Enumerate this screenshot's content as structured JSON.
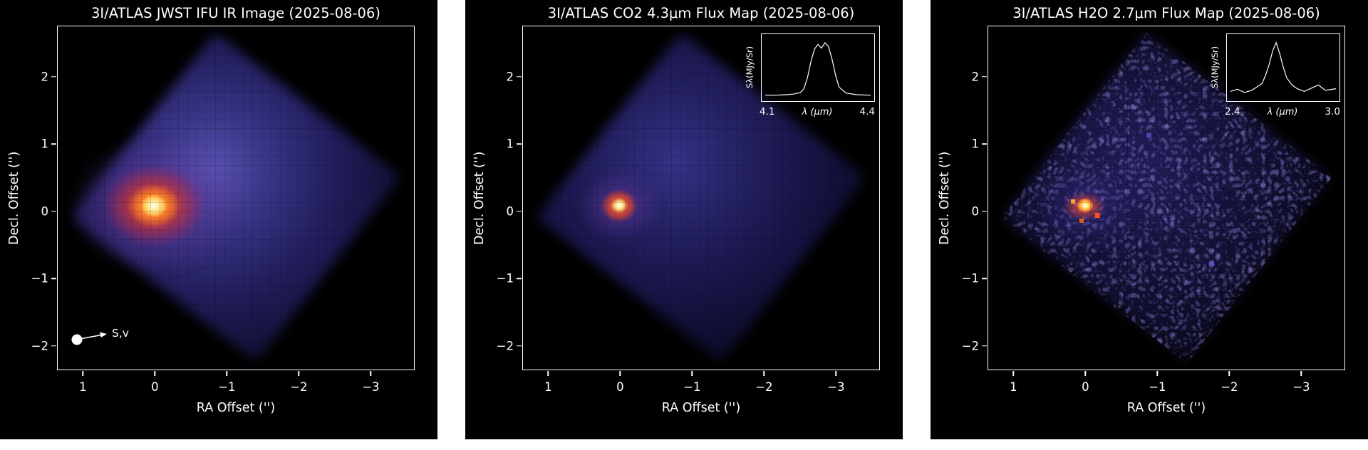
{
  "figure": {
    "background": "#ffffff",
    "panel_background": "#000000",
    "text_color": "#ffffff",
    "hot_core_color": "#ffee9a",
    "coma_color": "#4038a0"
  },
  "panels": [
    {
      "title": "3I/ATLAS JWST IFU IR Image (2025-08-06)",
      "xlabel": "RA Offset ('')",
      "ylabel": "Decl. Offset ('')",
      "annotation": "S,v"
    },
    {
      "title": "3I/ATLAS CO2 4.3μm Flux Map (2025-08-06)",
      "xlabel": "RA Offset ('')",
      "ylabel": "Decl. Offset ('')",
      "inset": {
        "ylabel": "Sλ(MJy/Sr)",
        "xlabel": "λ (μm)",
        "xticks": [
          "4.1",
          "4.4"
        ]
      }
    },
    {
      "title": "3I/ATLAS H2O 2.7μm Flux Map (2025-08-06)",
      "xlabel": "RA Offset ('')",
      "ylabel": "Decl. Offset ('')",
      "inset": {
        "ylabel": "Sλ(MJy/Sr)",
        "xlabel": "λ (μm)",
        "xticks": [
          "2.4",
          "3.0"
        ]
      }
    }
  ],
  "chart_data": [
    {
      "type": "heatmap",
      "title": "3I/ATLAS JWST IFU IR Image (2025-08-06)",
      "xlabel": "RA Offset ('')",
      "ylabel": "Decl. Offset ('')",
      "xlim": [
        1.35,
        -3.6
      ],
      "ylim": [
        -2.35,
        2.75
      ],
      "xticks": [
        1,
        0,
        -1,
        -2,
        -3
      ],
      "yticks": [
        -2,
        -1,
        0,
        1,
        2
      ],
      "peak": {
        "x": 0.0,
        "y": 0.0
      },
      "colormap": "black - dark blue - purple - red - orange - yellow - white",
      "annotation": {
        "label": "S,v",
        "x": 1.05,
        "y": -1.9
      },
      "description": "Diffuse diamond-shaped cometary coma (rotated IFU footprint) with a bright central condensation at the origin, fading toward negative RA offsets."
    },
    {
      "type": "heatmap",
      "title": "3I/ATLAS CO2 4.3μm Flux Map (2025-08-06)",
      "xlabel": "RA Offset ('')",
      "ylabel": "Decl. Offset ('')",
      "xlim": [
        1.35,
        -3.6
      ],
      "ylim": [
        -2.35,
        2.75
      ],
      "xticks": [
        1,
        0,
        -1,
        -2,
        -3
      ],
      "yticks": [
        -2,
        -1,
        0,
        1,
        2
      ],
      "peak": {
        "x": 0.0,
        "y": 0.0
      },
      "colormap": "black - dark blue - purple - red - orange - yellow - white",
      "description": "CO2 emission flux map: compact bright core at origin embedded in faint uniform diamond-shaped coma.",
      "inset": {
        "type": "line",
        "ylabel": "Sλ(MJy/Sr)",
        "xlabel": "λ (μm)",
        "xticks": [
          4.1,
          4.4
        ],
        "xlim": [
          4.1,
          4.4
        ],
        "x": [
          4.1,
          4.13,
          4.16,
          4.18,
          4.2,
          4.21,
          4.22,
          4.23,
          4.24,
          4.25,
          4.26,
          4.27,
          4.28,
          4.29,
          4.3,
          4.31,
          4.33,
          4.36,
          4.4
        ],
        "y": [
          0.03,
          0.03,
          0.04,
          0.05,
          0.08,
          0.15,
          0.35,
          0.65,
          0.88,
          0.97,
          0.9,
          1.0,
          0.93,
          0.7,
          0.4,
          0.18,
          0.07,
          0.04,
          0.03
        ]
      }
    },
    {
      "type": "heatmap",
      "title": "3I/ATLAS H2O 2.7μm Flux Map (2025-08-06)",
      "xlabel": "RA Offset ('')",
      "ylabel": "Decl. Offset ('')",
      "xlim": [
        1.35,
        -3.6
      ],
      "ylim": [
        -2.35,
        2.75
      ],
      "xticks": [
        1,
        0,
        -1,
        -2,
        -3
      ],
      "yticks": [
        -2,
        -1,
        0,
        1,
        2
      ],
      "peak": {
        "x": 0.0,
        "y": 0.0
      },
      "colormap": "black - dark blue - purple - red - orange - yellow - white",
      "description": "H2O emission flux map: noisy speckled diamond-shaped field with a small bright core at the origin.",
      "inset": {
        "type": "line",
        "ylabel": "Sλ(MJy/Sr)",
        "xlabel": "λ (μm)",
        "xticks": [
          2.4,
          3.0
        ],
        "xlim": [
          2.4,
          3.0
        ],
        "x": [
          2.4,
          2.44,
          2.48,
          2.52,
          2.55,
          2.58,
          2.6,
          2.62,
          2.64,
          2.66,
          2.68,
          2.7,
          2.72,
          2.75,
          2.78,
          2.82,
          2.86,
          2.9,
          2.94,
          3.0
        ],
        "y": [
          0.1,
          0.14,
          0.08,
          0.12,
          0.18,
          0.25,
          0.4,
          0.6,
          0.85,
          1.0,
          0.8,
          0.55,
          0.35,
          0.22,
          0.15,
          0.1,
          0.16,
          0.22,
          0.12,
          0.15
        ]
      }
    }
  ]
}
